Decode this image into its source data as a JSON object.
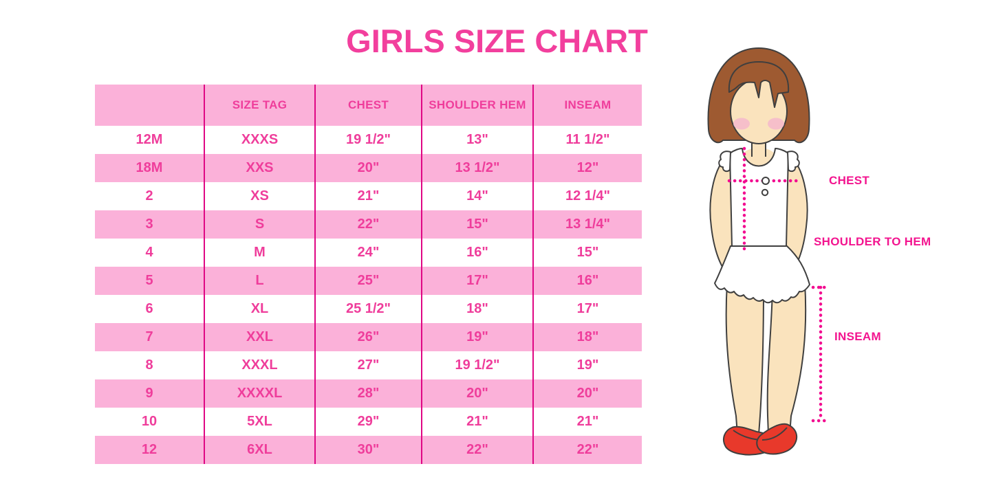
{
  "title": "GIRLS SIZE CHART",
  "chart_data": {
    "type": "table",
    "title": "GIRLS SIZE CHART",
    "columns": [
      "",
      "SIZE TAG",
      "CHEST",
      "SHOULDER HEM",
      "INSEAM"
    ],
    "rows": [
      [
        "12M",
        "XXXS",
        "19 1/2\"",
        "13\"",
        "11 1/2\""
      ],
      [
        "18M",
        "XXS",
        "20\"",
        "13 1/2\"",
        "12\""
      ],
      [
        "2",
        "XS",
        "21\"",
        "14\"",
        "12 1/4\""
      ],
      [
        "3",
        "S",
        "22\"",
        "15\"",
        "13 1/4\""
      ],
      [
        "4",
        "M",
        "24\"",
        "16\"",
        "15\""
      ],
      [
        "5",
        "L",
        "25\"",
        "17\"",
        "16\""
      ],
      [
        "6",
        "XL",
        "25 1/2\"",
        "18\"",
        "17\""
      ],
      [
        "7",
        "XXL",
        "26\"",
        "19\"",
        "18\""
      ],
      [
        "8",
        "XXXL",
        "27\"",
        "19 1/2\"",
        "19\""
      ],
      [
        "9",
        "XXXXL",
        "28\"",
        "20\"",
        "20\""
      ],
      [
        "10",
        "5XL",
        "29\"",
        "21\"",
        "21\""
      ],
      [
        "12",
        "6XL",
        "30\"",
        "22\"",
        "22\""
      ]
    ],
    "row_striping": "alternating white / pink starting white, header pink",
    "legend_position": "none",
    "grid": "vertical magenta separators only"
  },
  "figure": {
    "labels": {
      "chest": "CHEST",
      "shoulder_to_hem": "SHOULDER TO HEM",
      "inseam": "INSEAM"
    }
  },
  "colors": {
    "title_pink": "#F23F9D",
    "magenta_text": "#EF3D9B",
    "separator": "#DF0784",
    "row_pink": "#FBB1D9",
    "label_pink": "#F3148F",
    "dot_pink": "#F20C90",
    "hair_brown": "#9E5A31",
    "skin": "#FAE3BD",
    "blush": "#F5B8CD",
    "shoe_red": "#E8392B",
    "outline": "#3F3F3F",
    "garment_white": "#FFFFFF"
  }
}
